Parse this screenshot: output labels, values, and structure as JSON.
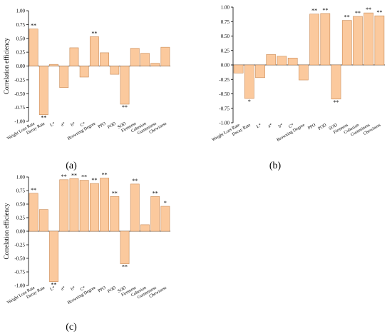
{
  "chart_data": [
    {
      "type": "bar",
      "panel_label": "(a)",
      "ylabel": "Correlation efficiency",
      "ylim": [
        -1.0,
        1.0
      ],
      "yticks": [
        "-1.00",
        "-0.75",
        "-0.50",
        "-0.25",
        "0.00",
        "0.25",
        "0.50",
        "0.75",
        "1.00"
      ],
      "grid": false,
      "bar_color": "#fbc99d",
      "categories": [
        "Weight Loss Rate",
        "Decay Rate",
        "L*",
        "a*",
        "b*",
        "C*",
        "Browning Degree",
        "PPO",
        "POD",
        "SOD",
        "Firmness",
        "Cohesion",
        "Gumminess",
        "Chewiness"
      ],
      "values": [
        0.67,
        -0.88,
        0.03,
        -0.39,
        0.33,
        -0.2,
        0.53,
        0.24,
        -0.15,
        -0.69,
        0.32,
        0.23,
        0.05,
        0.34
      ],
      "significance": [
        "**",
        "**",
        "",
        "",
        "",
        "",
        "**",
        "",
        "",
        "**",
        "",
        "",
        "",
        ""
      ]
    },
    {
      "type": "bar",
      "panel_label": "(b)",
      "ylabel": "",
      "ylim": [
        -1.0,
        1.0
      ],
      "yticks": [
        "-1.00",
        "-0.75",
        "-0.50",
        "-0.25",
        "0.00",
        "0.25",
        "0.50",
        "0.75",
        "1.00"
      ],
      "grid": false,
      "bar_color": "#fbc99d",
      "categories": [
        "Weight Loss Rate",
        "Decay Rate",
        "L*",
        "a*",
        "b*",
        "C*",
        "Browning Degree",
        "PPO",
        "POD",
        "SOD",
        "Firmness",
        "Cohesion",
        "Gumminess",
        "Chewiness"
      ],
      "values": [
        -0.14,
        -0.58,
        -0.22,
        0.18,
        0.15,
        0.12,
        -0.26,
        0.88,
        0.89,
        -0.59,
        0.77,
        0.84,
        0.9,
        0.85
      ],
      "significance": [
        "",
        "*",
        "",
        "",
        "",
        "",
        "",
        "**",
        "**",
        "**",
        "**",
        "**",
        "**",
        "**"
      ]
    },
    {
      "type": "bar",
      "panel_label": "(c)",
      "ylabel": "Correlation efficiency",
      "ylim": [
        -1.0,
        1.0
      ],
      "yticks": [
        "-1.00",
        "-0.75",
        "-0.50",
        "-0.25",
        "0.00",
        "0.25",
        "0.50",
        "0.75",
        "1.00"
      ],
      "grid": false,
      "bar_color": "#fbc99d",
      "categories": [
        "Weight Loss Rate",
        "Decay Rate",
        "L*",
        "a*",
        "b*",
        "C*",
        "Browning Degree",
        "PPO",
        "POD",
        "SOD",
        "Firmness",
        "Cohesion",
        "Gumminess",
        "Chewiness"
      ],
      "values": [
        0.7,
        0.4,
        -0.93,
        0.95,
        0.97,
        0.94,
        0.88,
        0.98,
        0.64,
        -0.6,
        0.87,
        0.12,
        0.64,
        0.46
      ],
      "significance": [
        "**",
        "",
        "**",
        "**",
        "**",
        "**",
        "**",
        "**",
        "**",
        "**",
        "**",
        "",
        "**",
        "*"
      ]
    }
  ]
}
